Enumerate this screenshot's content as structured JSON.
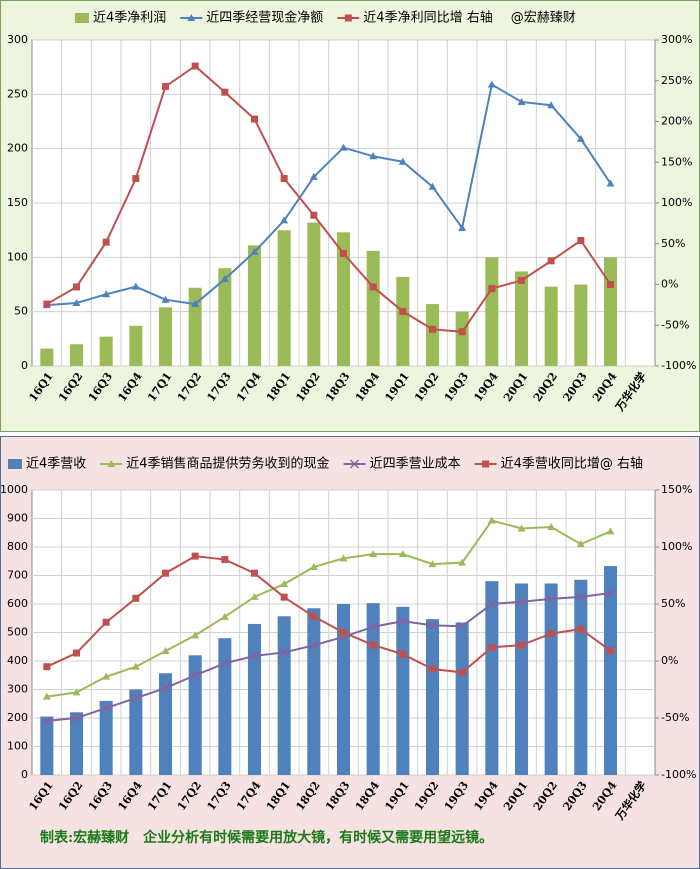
{
  "chart_data": [
    {
      "type": "combo",
      "categories": [
        "16Q1",
        "16Q2",
        "16Q3",
        "16Q4",
        "17Q1",
        "17Q2",
        "17Q3",
        "17Q4",
        "18Q1",
        "18Q2",
        "18Q3",
        "18Q4",
        "19Q1",
        "19Q2",
        "19Q3",
        "19Q4",
        "20Q1",
        "20Q2",
        "20Q3",
        "20Q4",
        "万华化学"
      ],
      "series": [
        {
          "name": "近4季净利润",
          "type": "bar",
          "color": "#9bbb59",
          "values": [
            16,
            20,
            27,
            37,
            54,
            72,
            90,
            111,
            125,
            132,
            123,
            106,
            82,
            57,
            50,
            100,
            87,
            73,
            75,
            100,
            null
          ]
        },
        {
          "name": "近四季经营现金净额",
          "type": "line",
          "marker": "triangle",
          "color": "#4f81bd",
          "values": [
            56,
            58,
            66,
            73,
            61,
            57,
            80,
            105,
            134,
            174,
            201,
            193,
            188,
            165,
            127,
            259,
            243,
            240,
            209,
            168,
            null
          ]
        },
        {
          "name": "近4季净利同比增 右轴",
          "type": "line",
          "marker": "square",
          "axis": "y2",
          "color": "#c0504d",
          "values": [
            -24,
            -3,
            52,
            130,
            243,
            268,
            236,
            203,
            130,
            85,
            38,
            -3,
            -33,
            -55,
            -58,
            -5,
            5,
            29,
            54,
            0,
            null
          ]
        }
      ],
      "annotation": "@宏赫臻财",
      "ylim": [
        0,
        300
      ],
      "yticks": [
        0,
        50,
        100,
        150,
        200,
        250,
        300
      ],
      "y2lim": [
        -100,
        300
      ],
      "y2ticks": [
        {
          "value": -100,
          "label": "-100%"
        },
        {
          "value": -50,
          "label": "-50%"
        },
        {
          "value": 0,
          "label": "0%"
        },
        {
          "value": 50,
          "label": "50%"
        },
        {
          "value": 100,
          "label": "100%"
        },
        {
          "value": 150,
          "label": "150%"
        },
        {
          "value": 200,
          "label": "200%"
        },
        {
          "value": 250,
          "label": "250%"
        },
        {
          "value": 300,
          "label": "300%"
        }
      ],
      "grid": true
    },
    {
      "type": "combo",
      "categories": [
        "16Q1",
        "16Q2",
        "16Q3",
        "16Q4",
        "17Q1",
        "17Q2",
        "17Q3",
        "17Q4",
        "18Q1",
        "18Q2",
        "18Q3",
        "18Q4",
        "19Q1",
        "19Q2",
        "19Q3",
        "19Q4",
        "20Q1",
        "20Q2",
        "20Q3",
        "20Q4",
        "万华化学"
      ],
      "series": [
        {
          "name": "近4季营收",
          "type": "bar",
          "color": "#4f81bd",
          "values": [
            205,
            220,
            260,
            300,
            357,
            420,
            480,
            530,
            557,
            585,
            600,
            603,
            590,
            547,
            535,
            680,
            672,
            672,
            685,
            733,
            null
          ]
        },
        {
          "name": "近4季销售商品提供劳务收到的现金",
          "type": "line",
          "marker": "triangle",
          "color": "#9bbb59",
          "values": [
            275,
            290,
            345,
            380,
            435,
            490,
            555,
            625,
            670,
            730,
            760,
            775,
            775,
            740,
            745,
            893,
            865,
            870,
            810,
            855,
            null
          ]
        },
        {
          "name": "近四季营业成本",
          "type": "line",
          "marker": "x",
          "color": "#8064a2",
          "values": [
            190,
            200,
            235,
            270,
            305,
            350,
            392,
            418,
            430,
            455,
            485,
            520,
            540,
            525,
            522,
            600,
            608,
            618,
            625,
            638,
            null
          ]
        },
        {
          "name": "近4季营收同比增@ 右轴",
          "type": "line",
          "marker": "square",
          "axis": "y2",
          "color": "#c0504d",
          "values": [
            -5,
            7,
            34,
            55,
            77,
            92,
            89,
            77,
            56,
            39,
            25,
            14,
            6,
            -7,
            -10,
            12,
            14,
            24,
            28,
            9,
            null
          ]
        }
      ],
      "annotation": "制表:宏赫臻财　企业分析有时候需要用放大镜，有时候又需要用望远镜。",
      "ylim": [
        0,
        1000
      ],
      "yticks": [
        0,
        100,
        200,
        300,
        400,
        500,
        600,
        700,
        800,
        900,
        1000
      ],
      "y2lim": [
        -100,
        150
      ],
      "y2ticks": [
        {
          "value": -100,
          "label": "-100%"
        },
        {
          "value": -50,
          "label": "-50%"
        },
        {
          "value": 0,
          "label": "0%"
        },
        {
          "value": 50,
          "label": "50%"
        },
        {
          "value": 100,
          "label": "100%"
        },
        {
          "value": 150,
          "label": "150%"
        }
      ],
      "grid": true
    }
  ]
}
